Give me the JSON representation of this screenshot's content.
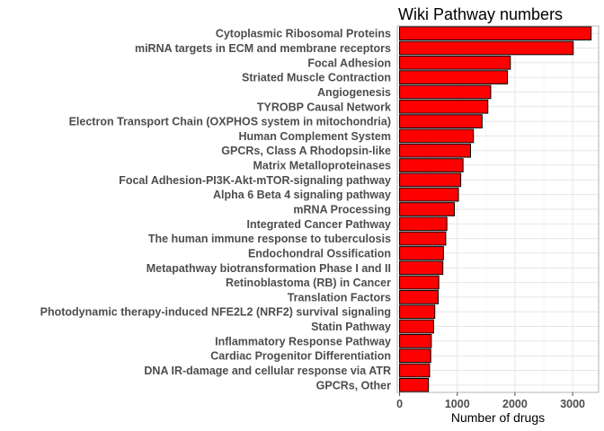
{
  "chart_data": {
    "type": "bar",
    "orientation": "horizontal",
    "title": "Wiki Pathway numbers",
    "xlabel": "Number of drugs",
    "ylabel": "",
    "xlim": [
      -40,
      3450
    ],
    "xticks": [
      0,
      1000,
      2000,
      3000
    ],
    "xtick_labels": [
      "0",
      "1000",
      "2000",
      "3000"
    ],
    "grid": true,
    "legend": "none",
    "bar_color": "#ff0000",
    "bar_outline": "#000000",
    "categories": [
      "Cytoplasmic Ribosomal Proteins",
      "miRNA targets in ECM and membrane receptors",
      "Focal Adhesion",
      "Striated Muscle Contraction",
      "Angiogenesis",
      "TYROBP Causal Network",
      "Electron Transport Chain (OXPHOS system in mitochondria)",
      "Human Complement System",
      "GPCRs, Class A Rhodopsin-like",
      "Matrix Metalloproteinases",
      "Focal Adhesion-PI3K-Akt-mTOR-signaling pathway",
      "Alpha 6 Beta 4 signaling pathway",
      "mRNA Processing",
      "Integrated Cancer Pathway",
      "The human immune response to tuberculosis",
      "Endochondral Ossification",
      "Metapathway biotransformation Phase I and II",
      "Retinoblastoma (RB) in Cancer",
      "Translation Factors",
      "Photodynamic therapy-induced NFE2L2 (NRF2) survival signaling",
      "Statin Pathway",
      "Inflammatory Response Pathway",
      "Cardiac Progenitor Differentiation",
      "DNA IR-damage and cellular response via ATR",
      "GPCRs, Other"
    ],
    "values": [
      3320,
      3010,
      1920,
      1870,
      1580,
      1530,
      1430,
      1280,
      1230,
      1100,
      1060,
      1020,
      950,
      820,
      800,
      760,
      750,
      680,
      670,
      610,
      590,
      550,
      540,
      520,
      500
    ]
  }
}
